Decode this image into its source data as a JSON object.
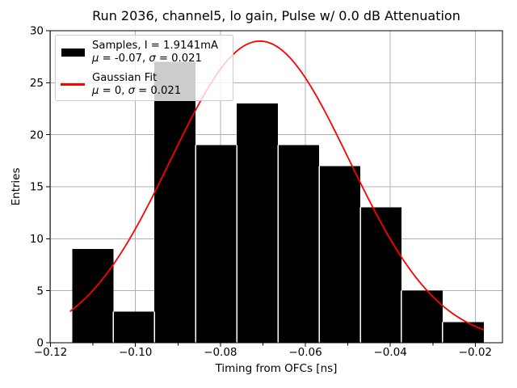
{
  "figure": {
    "background_color": "#ffffff"
  },
  "chart_data": {
    "type": "histogram+line",
    "title": "Run 2036, channel5, lo gain, Pulse w/ 0.0 dB Attenuation",
    "xlabel": "Timing from OFCs [ns]",
    "ylabel": "Entries",
    "xlim": [
      -0.1201,
      -0.0136
    ],
    "ylim": [
      0,
      30
    ],
    "grid": true,
    "grid_color": "#b0b0b0",
    "x_major_ticks": [
      -0.12,
      -0.1,
      -0.08,
      -0.06,
      -0.04,
      -0.02
    ],
    "x_major_tick_labels": [
      "−0.12",
      "−0.10",
      "−0.08",
      "−0.06",
      "−0.04",
      "−0.02"
    ],
    "x_minor_ticks": [
      -0.11,
      -0.09,
      -0.07,
      -0.05,
      -0.03
    ],
    "y_ticks": [
      0,
      5,
      10,
      15,
      20,
      25,
      30
    ],
    "y_tick_labels": [
      "0",
      "5",
      "10",
      "15",
      "20",
      "25",
      "30"
    ],
    "histogram": {
      "bin_start": -0.1149,
      "bin_width": 0.00969,
      "counts": [
        9,
        3,
        27,
        19,
        23,
        19,
        17,
        13,
        5,
        2
      ],
      "bar_color": "#000000",
      "edge_color": "#ffffff"
    },
    "gaussian_fit": {
      "amplitude": 29,
      "mu": -0.0707,
      "sigma": 0.021,
      "x_range": [
        -0.1153,
        -0.0181
      ],
      "color": "#ff0000"
    },
    "legend": {
      "entries": [
        {
          "swatch": "bar",
          "color": "#000000",
          "lines": [
            "Samples, I = 1.9141mA",
            "μ = -0.07, σ = 0.021"
          ]
        },
        {
          "swatch": "line",
          "color": "#ff0000",
          "lines": [
            "Gaussian Fit",
            "μ = 0, σ = 0.021"
          ]
        }
      ]
    }
  }
}
